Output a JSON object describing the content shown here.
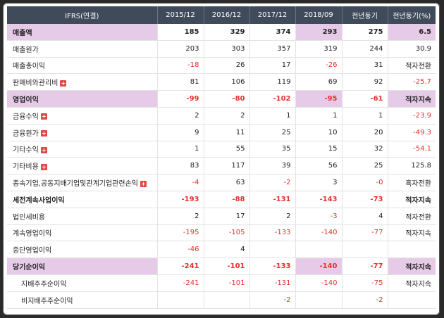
{
  "header": [
    "IFRS(연결)",
    "2015/12",
    "2016/12",
    "2017/12",
    "2018/09",
    "전년동기",
    "전년동기(%)"
  ],
  "rows": [
    {
      "label": "매출액",
      "hl": true,
      "plus": false,
      "indent": false,
      "cells": [
        "185",
        "329",
        "374",
        "293",
        "275",
        "6.5"
      ],
      "hlcells": [
        3,
        5
      ],
      "neg": []
    },
    {
      "label": "매출원가",
      "hl": false,
      "plus": false,
      "indent": false,
      "cells": [
        "203",
        "303",
        "357",
        "319",
        "244",
        "30.9"
      ],
      "hlcells": [],
      "neg": []
    },
    {
      "label": "매출총이익",
      "hl": false,
      "plus": false,
      "indent": false,
      "cells": [
        "-18",
        "26",
        "17",
        "-26",
        "31",
        "적자전환"
      ],
      "hlcells": [],
      "neg": [
        0,
        3
      ]
    },
    {
      "label": "판매비와관리비",
      "hl": false,
      "plus": true,
      "indent": false,
      "cells": [
        "81",
        "106",
        "119",
        "69",
        "92",
        "-25.7"
      ],
      "hlcells": [],
      "neg": [
        5
      ]
    },
    {
      "label": "영업이익",
      "hl": true,
      "plus": false,
      "indent": false,
      "cells": [
        "-99",
        "-80",
        "-102",
        "-95",
        "-61",
        "적자지속"
      ],
      "hlcells": [
        3,
        5
      ],
      "neg": [
        0,
        1,
        2,
        3,
        4
      ]
    },
    {
      "label": "금융수익",
      "hl": false,
      "plus": true,
      "indent": false,
      "cells": [
        "2",
        "2",
        "1",
        "1",
        "1",
        "-23.9"
      ],
      "hlcells": [],
      "neg": [
        5
      ]
    },
    {
      "label": "금융원가",
      "hl": false,
      "plus": true,
      "indent": false,
      "cells": [
        "9",
        "11",
        "25",
        "10",
        "20",
        "-49.3"
      ],
      "hlcells": [],
      "neg": [
        5
      ]
    },
    {
      "label": "기타수익",
      "hl": false,
      "plus": true,
      "indent": false,
      "cells": [
        "1",
        "55",
        "35",
        "15",
        "32",
        "-54.1"
      ],
      "hlcells": [],
      "neg": [
        5
      ]
    },
    {
      "label": "기타비용",
      "hl": false,
      "plus": true,
      "indent": false,
      "cells": [
        "83",
        "117",
        "39",
        "56",
        "25",
        "125.8"
      ],
      "hlcells": [],
      "neg": []
    },
    {
      "label": "종속기업,공동지배기업및관계기업관련손익",
      "hl": false,
      "plus": true,
      "indent": false,
      "cells": [
        "-4",
        "63",
        "-2",
        "3",
        "-0",
        "흑자전환"
      ],
      "hlcells": [],
      "neg": [
        0,
        2,
        4
      ]
    },
    {
      "label": "세전계속사업이익",
      "hl": false,
      "bold": true,
      "plus": false,
      "indent": false,
      "cells": [
        "-193",
        "-88",
        "-131",
        "-143",
        "-73",
        "적자지속"
      ],
      "hlcells": [],
      "neg": [
        0,
        1,
        2,
        3,
        4
      ]
    },
    {
      "label": "법인세비용",
      "hl": false,
      "plus": false,
      "indent": false,
      "cells": [
        "2",
        "17",
        "2",
        "-3",
        "4",
        "적자전환"
      ],
      "hlcells": [],
      "neg": [
        3
      ]
    },
    {
      "label": "계속영업이익",
      "hl": false,
      "plus": false,
      "indent": false,
      "cells": [
        "-195",
        "-105",
        "-133",
        "-140",
        "-77",
        "적자지속"
      ],
      "hlcells": [],
      "neg": [
        0,
        1,
        2,
        3,
        4
      ]
    },
    {
      "label": "중단영업이익",
      "hl": false,
      "plus": false,
      "indent": false,
      "cells": [
        "-46",
        "4",
        "",
        "",
        "",
        ""
      ],
      "hlcells": [],
      "neg": [
        0
      ]
    },
    {
      "label": "당기순이익",
      "hl": true,
      "plus": false,
      "indent": false,
      "cells": [
        "-241",
        "-101",
        "-133",
        "-140",
        "-77",
        "적자지속"
      ],
      "hlcells": [
        3,
        5
      ],
      "neg": [
        0,
        1,
        2,
        3,
        4
      ]
    },
    {
      "label": "지배주주순이익",
      "hl": false,
      "plus": false,
      "indent": true,
      "cells": [
        "-241",
        "-101",
        "-131",
        "-140",
        "-75",
        "적자지속"
      ],
      "hlcells": [],
      "neg": [
        0,
        1,
        2,
        3,
        4
      ]
    },
    {
      "label": "비지배주주순이익",
      "hl": false,
      "plus": false,
      "indent": true,
      "cells": [
        "",
        "",
        "-2",
        "",
        "-2",
        ""
      ],
      "hlcells": [],
      "neg": [
        2,
        4
      ]
    }
  ]
}
